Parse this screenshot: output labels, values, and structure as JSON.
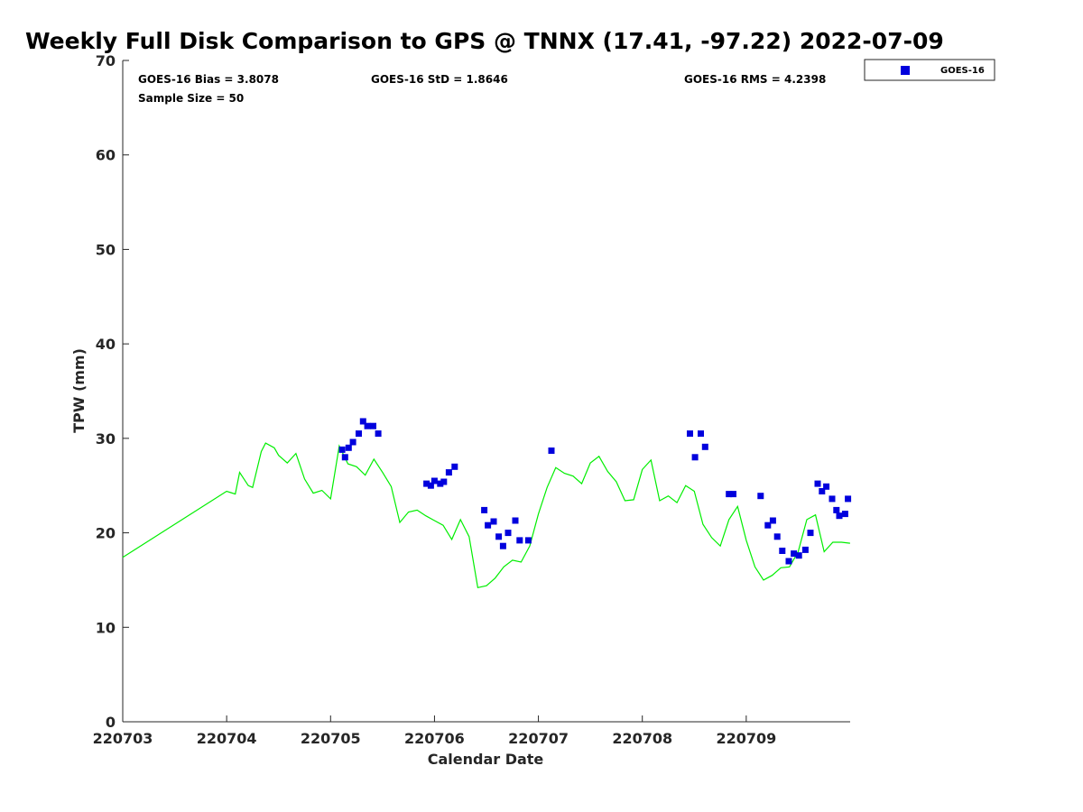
{
  "chart_data": {
    "type": "scatter",
    "title": "Weekly Full Disk Comparison to GPS @ TNNX (17.41, -97.22) 2022-07-09",
    "xlabel": "Calendar Date",
    "ylabel": "TPW (mm)",
    "xlim": [
      "2022-07-03",
      "2022-07-10"
    ],
    "ylim": [
      0,
      70
    ],
    "x_tick_labels": [
      "220703",
      "220704",
      "220705",
      "220706",
      "220707",
      "220708",
      "220709"
    ],
    "y_ticks": [
      0,
      10,
      20,
      30,
      40,
      50,
      60,
      70
    ],
    "grid": false,
    "legend_position": "top-right",
    "stats": {
      "bias": "GOES-16 Bias = 3.8078",
      "std": "GOES-16 StD = 1.8646",
      "rms": "GOES-16 RMS = 4.2398",
      "sample": "Sample Size = 50"
    },
    "series": [
      {
        "name": "GOES-16",
        "kind": "scatter",
        "marker": "square",
        "color": "#0000dd",
        "x": [
          "2022-07-05 02:40",
          "2022-07-05 03:20",
          "2022-07-05 04:10",
          "2022-07-05 05:10",
          "2022-07-05 06:30",
          "2022-07-05 07:30",
          "2022-07-05 08:30",
          "2022-07-05 09:50",
          "2022-07-05 11:00",
          "2022-07-05 22:10",
          "2022-07-05 23:10",
          "2022-07-06 00:00",
          "2022-07-06 01:20",
          "2022-07-06 02:10",
          "2022-07-06 03:20",
          "2022-07-06 04:40",
          "2022-07-06 11:30",
          "2022-07-06 12:20",
          "2022-07-06 13:40",
          "2022-07-06 14:50",
          "2022-07-06 15:50",
          "2022-07-06 17:00",
          "2022-07-06 18:40",
          "2022-07-06 19:40",
          "2022-07-06 21:40",
          "2022-07-07 03:00",
          "2022-07-08 11:00",
          "2022-07-08 12:10",
          "2022-07-08 13:30",
          "2022-07-08 14:30",
          "2022-07-08 20:00",
          "2022-07-08 21:00",
          "2022-07-09 03:20",
          "2022-07-09 05:00",
          "2022-07-09 06:10",
          "2022-07-09 07:10",
          "2022-07-09 08:20",
          "2022-07-09 09:50",
          "2022-07-09 11:00",
          "2022-07-09 12:10",
          "2022-07-09 13:40",
          "2022-07-09 14:50",
          "2022-07-09 16:30",
          "2022-07-09 17:30",
          "2022-07-09 18:30",
          "2022-07-09 19:50",
          "2022-07-09 20:50",
          "2022-07-09 21:30",
          "2022-07-09 22:50",
          "2022-07-09 23:30"
        ],
        "y": [
          28.8,
          28.0,
          29.0,
          29.6,
          30.5,
          31.8,
          31.3,
          31.3,
          30.5,
          25.2,
          25.0,
          25.5,
          25.2,
          25.4,
          26.4,
          27.0,
          22.4,
          20.8,
          21.2,
          19.6,
          18.6,
          20.0,
          21.3,
          19.2,
          19.2,
          28.7,
          30.5,
          28.0,
          30.5,
          29.1,
          24.1,
          24.1,
          23.9,
          20.8,
          21.3,
          19.6,
          18.1,
          17.0,
          17.8,
          17.6,
          18.2,
          20.0,
          25.2,
          24.4,
          24.9,
          23.6,
          22.4,
          21.8,
          22.0,
          23.6
        ]
      },
      {
        "name": "",
        "kind": "line",
        "color": "#00ee00",
        "x": [
          "2022-07-03 00:00",
          "2022-07-04 00:00",
          "2022-07-04 02:00",
          "2022-07-04 03:00",
          "2022-07-04 05:00",
          "2022-07-04 06:00",
          "2022-07-04 08:00",
          "2022-07-04 09:00",
          "2022-07-04 11:00",
          "2022-07-04 12:00",
          "2022-07-04 14:00",
          "2022-07-04 16:00",
          "2022-07-04 18:00",
          "2022-07-04 20:00",
          "2022-07-04 22:00",
          "2022-07-05 00:00",
          "2022-07-05 02:00",
          "2022-07-05 04:00",
          "2022-07-05 06:00",
          "2022-07-05 08:00",
          "2022-07-05 10:00",
          "2022-07-05 12:00",
          "2022-07-05 14:00",
          "2022-07-05 16:00",
          "2022-07-05 18:00",
          "2022-07-05 20:00",
          "2022-07-05 22:00",
          "2022-07-06 00:00",
          "2022-07-06 02:00",
          "2022-07-06 04:00",
          "2022-07-06 06:00",
          "2022-07-06 08:00",
          "2022-07-06 10:00",
          "2022-07-06 12:00",
          "2022-07-06 14:00",
          "2022-07-06 16:00",
          "2022-07-06 18:00",
          "2022-07-06 20:00",
          "2022-07-06 22:00",
          "2022-07-07 00:00",
          "2022-07-07 02:00",
          "2022-07-07 04:00",
          "2022-07-07 06:00",
          "2022-07-07 08:00",
          "2022-07-07 10:00",
          "2022-07-07 12:00",
          "2022-07-07 14:00",
          "2022-07-07 16:00",
          "2022-07-07 18:00",
          "2022-07-07 20:00",
          "2022-07-07 22:00",
          "2022-07-08 00:00",
          "2022-07-08 02:00",
          "2022-07-08 04:00",
          "2022-07-08 06:00",
          "2022-07-08 08:00",
          "2022-07-08 10:00",
          "2022-07-08 12:00",
          "2022-07-08 14:00",
          "2022-07-08 16:00",
          "2022-07-08 18:00",
          "2022-07-08 20:00",
          "2022-07-08 22:00",
          "2022-07-09 00:00",
          "2022-07-09 02:00",
          "2022-07-09 04:00",
          "2022-07-09 06:00",
          "2022-07-09 08:00",
          "2022-07-09 10:00",
          "2022-07-09 12:00",
          "2022-07-09 14:00",
          "2022-07-09 16:00",
          "2022-07-09 18:00",
          "2022-07-09 20:00",
          "2022-07-09 22:00",
          "2022-07-09 23:59"
        ],
        "y": [
          17.4,
          24.4,
          24.1,
          26.4,
          25.0,
          24.8,
          28.6,
          29.5,
          29.0,
          28.2,
          27.4,
          28.4,
          25.7,
          24.2,
          24.5,
          23.6,
          29.2,
          27.3,
          27.0,
          26.1,
          27.8,
          26.4,
          24.9,
          21.1,
          22.2,
          22.4,
          21.8,
          21.3,
          20.8,
          19.3,
          21.4,
          19.6,
          14.2,
          14.4,
          15.2,
          16.4,
          17.1,
          16.9,
          18.6,
          22.0,
          24.8,
          26.9,
          26.3,
          26.0,
          25.2,
          27.4,
          28.1,
          26.5,
          25.4,
          23.4,
          23.5,
          26.7,
          27.7,
          23.4,
          23.9,
          23.2,
          25.0,
          24.4,
          20.9,
          19.5,
          18.6,
          21.4,
          22.8,
          19.2,
          16.4,
          15.0,
          15.5,
          16.3,
          16.4,
          18.0,
          21.4,
          21.9,
          18.0,
          19.0,
          19.0,
          18.9
        ]
      }
    ]
  }
}
